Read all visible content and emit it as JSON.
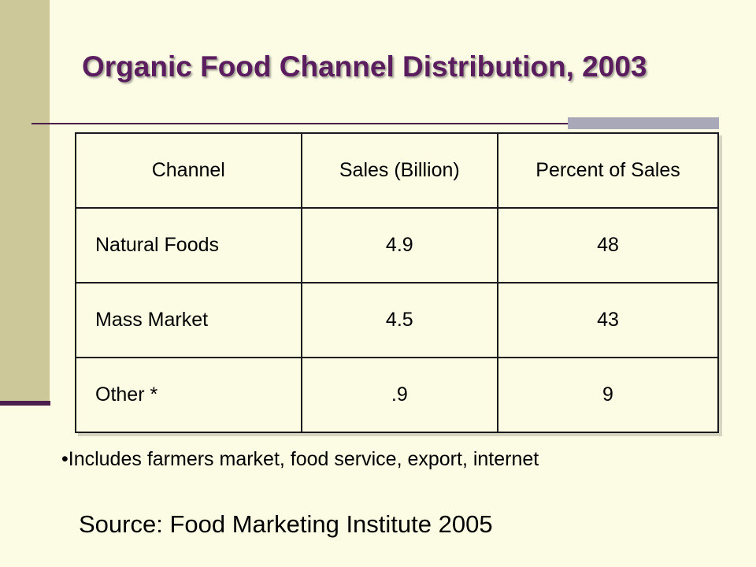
{
  "slide": {
    "title": "Organic Food Channel Distribution, 2003",
    "table": {
      "headers": [
        "Channel",
        "Sales (Billion)",
        "Percent of Sales"
      ],
      "rows": [
        [
          "Natural Foods",
          "4.9",
          "48"
        ],
        [
          "Mass Market",
          "4.5",
          "43"
        ],
        [
          "Other *",
          ".9",
          "9"
        ]
      ]
    },
    "footnote": "•Includes farmers market, food service, export, internet",
    "source": "Source:  Food Marketing Institute 2005"
  },
  "colors": {
    "background": "#fcfbe4",
    "sidebar": "#cdc89a",
    "accent": "#4b1e4c",
    "title": "#5a1e5e"
  }
}
